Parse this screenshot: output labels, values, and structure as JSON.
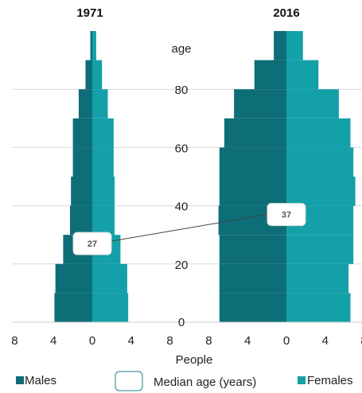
{
  "chart_data": {
    "type": "bar",
    "orientation": "horizontal",
    "age_axis": {
      "label": "age",
      "ticks": [
        0,
        20,
        40,
        60,
        80
      ],
      "range": [
        0,
        100
      ],
      "band_width": 10
    },
    "x_axis": {
      "label": "People",
      "ticks": [
        "8",
        "4",
        "0",
        "4",
        "8"
      ],
      "range": [
        -8,
        8
      ]
    },
    "colors": {
      "males": "#0d6e78",
      "females": "#14a0a8",
      "grid": "#d8d8d8",
      "median_line": "#444444"
    },
    "legend": {
      "position": "bottom",
      "items": [
        {
          "label": "Males",
          "color": "#0d6e78",
          "symbol": "square"
        },
        {
          "label": "Median age (years)",
          "symbol": "box"
        },
        {
          "label": "Females",
          "color": "#14a0a8",
          "symbol": "square"
        }
      ]
    },
    "panels": [
      {
        "title": "1971",
        "median_age": 27,
        "age_bands": [
          0,
          10,
          20,
          30,
          40,
          50,
          60,
          70,
          80,
          90,
          100
        ],
        "males": [
          3.9,
          3.8,
          3.0,
          2.3,
          2.2,
          2.0,
          2.0,
          1.4,
          0.7,
          0.2,
          0.08
        ],
        "females": [
          3.7,
          3.6,
          2.9,
          2.3,
          2.3,
          2.2,
          2.2,
          1.6,
          1.0,
          0.4,
          0.1
        ]
      },
      {
        "title": "2016",
        "median_age": 37,
        "age_bands": [
          0,
          10,
          20,
          30,
          40,
          50,
          60,
          70,
          80,
          90,
          100
        ],
        "males": [
          6.9,
          6.9,
          6.9,
          7.0,
          6.9,
          6.9,
          6.4,
          5.4,
          3.3,
          1.3,
          0.5
        ],
        "females": [
          6.6,
          6.4,
          6.9,
          6.9,
          7.1,
          6.9,
          6.6,
          5.4,
          3.3,
          1.7,
          0.6
        ]
      }
    ]
  }
}
